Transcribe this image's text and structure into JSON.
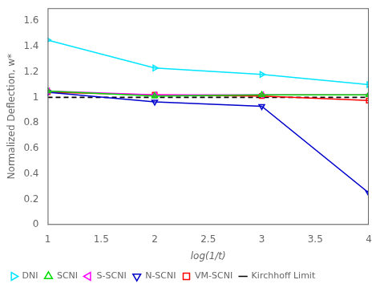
{
  "chart_data": {
    "type": "line",
    "x": [
      1,
      2,
      3,
      4
    ],
    "series": [
      {
        "name": "DNI",
        "color": "#00E5FF",
        "values": [
          1.45,
          1.23,
          1.18,
          1.1
        ],
        "marker": "triangle-right",
        "line_style": "solid"
      },
      {
        "name": "SCNI",
        "color": "#00DD00",
        "values": [
          1.05,
          1.01,
          1.02,
          1.02
        ],
        "marker": "triangle-up",
        "line_style": "solid"
      },
      {
        "name": "S-SCNI",
        "color": "#FF00FF",
        "values": [
          1.05,
          1.02,
          1.02,
          1.02
        ],
        "marker": "triangle-left",
        "line_style": "solid"
      },
      {
        "name": "N-SCNI",
        "color": "#0000CC",
        "values": [
          1.04,
          0.965,
          0.93,
          0.25
        ],
        "marker": "triangle-down",
        "line_style": "solid"
      },
      {
        "name": "VM-SCNI",
        "color": "#FF0000",
        "values": [
          1.04,
          1.02,
          1.01,
          0.975
        ],
        "marker": "square",
        "line_style": "solid"
      },
      {
        "name": "Kirchhoff Limit",
        "color": "#000000",
        "values": [
          1.0,
          1.0,
          1.0,
          1.0
        ],
        "marker": "none",
        "line_style": "dashed"
      }
    ],
    "xlabel": "log(1/t)",
    "ylabel": "Normalized Deflection, w*",
    "xlim": [
      1,
      4
    ],
    "ylim": [
      0,
      1.7
    ],
    "xticks": [
      1,
      1.5,
      2,
      2.5,
      3,
      3.5,
      4
    ],
    "yticks": [
      0,
      0.2,
      0.4,
      0.6,
      0.8,
      1.0,
      1.2,
      1.4,
      1.6
    ],
    "grid": false,
    "legend": "lower left"
  }
}
